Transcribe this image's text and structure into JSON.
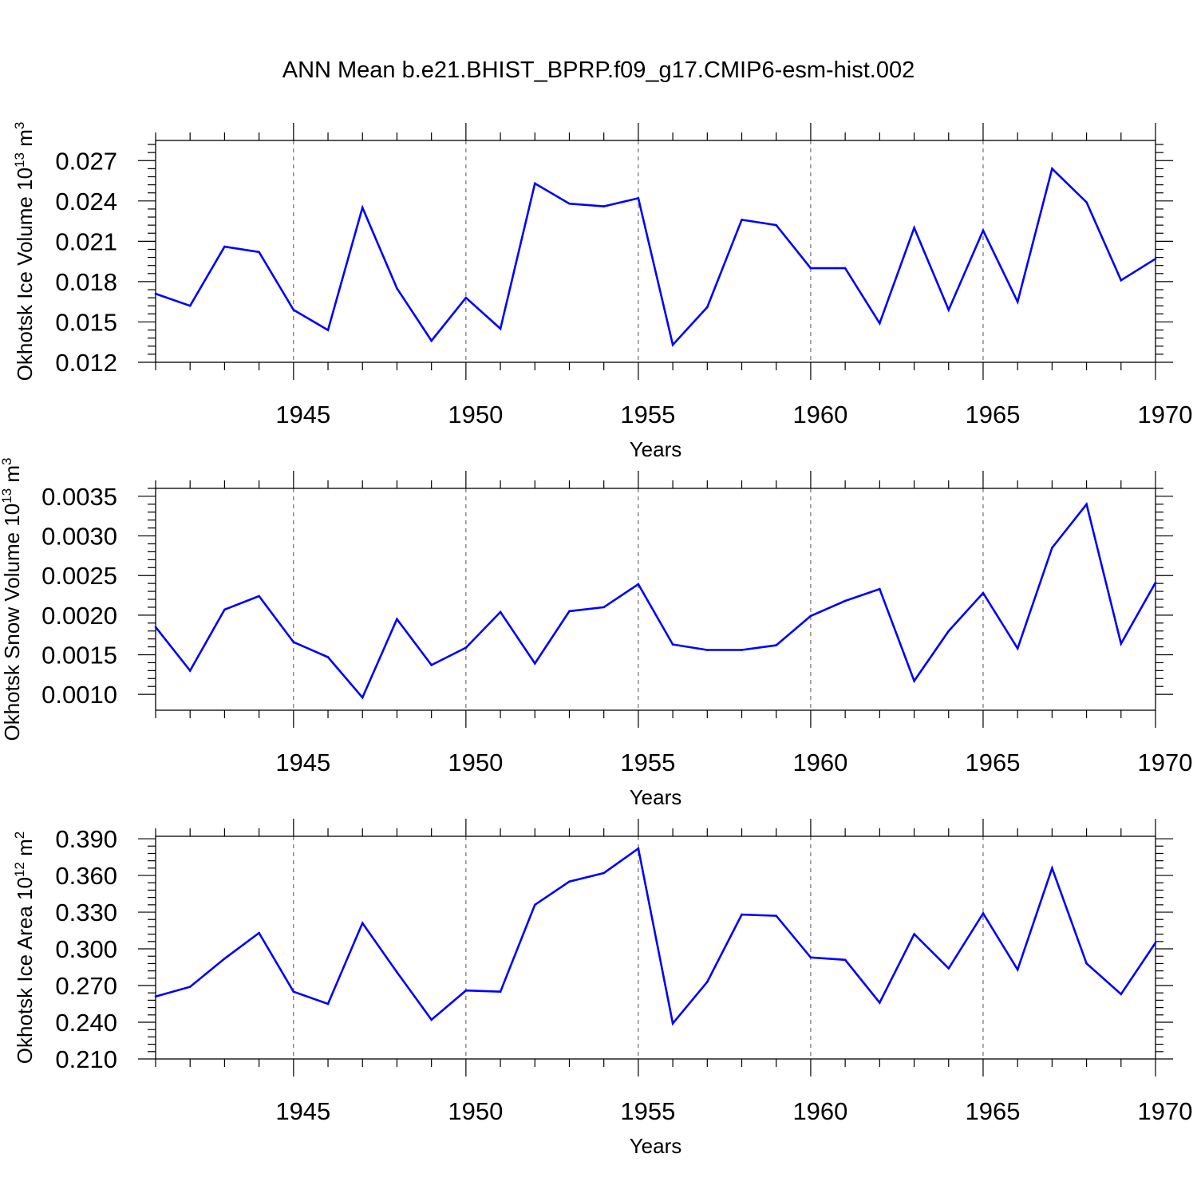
{
  "title": "ANN Mean b.e21.BHIST_BPRP.f09_g17.CMIP6-esm-hist.002",
  "colors": {
    "series": "#0000ff",
    "axis": "#000000",
    "grid": "#555555"
  },
  "chart_data": [
    {
      "type": "line",
      "xlabel": "Years",
      "ylabel": "Okhotsk Ice Volume 10",
      "ylabel_exp": "13",
      "ylabel_unit": " m",
      "ylabel_unit_exp": "3",
      "xlim": [
        1941,
        1970
      ],
      "ylim": [
        0.012,
        0.0285
      ],
      "xticks": [
        1945,
        1950,
        1955,
        1960,
        1965,
        1970
      ],
      "xtick_labels": [
        "1945",
        "1950",
        "1955",
        "1960",
        "1965",
        "1970"
      ],
      "yticks": [
        0.012,
        0.015,
        0.018,
        0.021,
        0.024,
        0.027
      ],
      "ytick_labels": [
        "0.012",
        "0.015",
        "0.018",
        "0.021",
        "0.024",
        "0.027"
      ],
      "grid": "vertical dashed at labeled years",
      "x": [
        1941,
        1942,
        1943,
        1944,
        1945,
        1946,
        1947,
        1948,
        1949,
        1950,
        1951,
        1952,
        1953,
        1954,
        1955,
        1956,
        1957,
        1958,
        1959,
        1960,
        1961,
        1962,
        1963,
        1964,
        1965,
        1966,
        1967,
        1968,
        1969,
        1970
      ],
      "values": [
        0.0171,
        0.0162,
        0.0206,
        0.0202,
        0.0159,
        0.0144,
        0.0235,
        0.0175,
        0.0136,
        0.0168,
        0.0145,
        0.0253,
        0.0238,
        0.0236,
        0.0242,
        0.0133,
        0.0161,
        0.0226,
        0.0222,
        0.019,
        0.019,
        0.0149,
        0.022,
        0.0159,
        0.0218,
        0.0165,
        0.0264,
        0.0239,
        0.0181,
        0.0197
      ]
    },
    {
      "type": "line",
      "xlabel": "Years",
      "ylabel": "Okhotsk Snow Volume 10",
      "ylabel_exp": "13",
      "ylabel_unit": " m",
      "ylabel_unit_exp": "3",
      "xlim": [
        1941,
        1970
      ],
      "ylim": [
        0.0008,
        0.0036
      ],
      "xticks": [
        1945,
        1950,
        1955,
        1960,
        1965,
        1970
      ],
      "xtick_labels": [
        "1945",
        "1950",
        "1955",
        "1960",
        "1965",
        "1970"
      ],
      "yticks": [
        0.001,
        0.0015,
        0.002,
        0.0025,
        0.003,
        0.0035
      ],
      "ytick_labels": [
        "0.0010",
        "0.0015",
        "0.0020",
        "0.0025",
        "0.0030",
        "0.0035"
      ],
      "grid": "vertical dashed at labeled years",
      "x": [
        1941,
        1942,
        1943,
        1944,
        1945,
        1946,
        1947,
        1948,
        1949,
        1950,
        1951,
        1952,
        1953,
        1954,
        1955,
        1956,
        1957,
        1958,
        1959,
        1960,
        1961,
        1962,
        1963,
        1964,
        1965,
        1966,
        1967,
        1968,
        1969,
        1970
      ],
      "values": [
        0.00185,
        0.0013,
        0.00207,
        0.00224,
        0.00166,
        0.00147,
        0.00096,
        0.00195,
        0.00137,
        0.00159,
        0.00204,
        0.00139,
        0.00205,
        0.0021,
        0.00239,
        0.00163,
        0.00156,
        0.00156,
        0.00162,
        0.00199,
        0.00218,
        0.00233,
        0.00117,
        0.0018,
        0.00228,
        0.00158,
        0.00285,
        0.0034,
        0.00164,
        0.00241
      ]
    },
    {
      "type": "line",
      "xlabel": "Years",
      "ylabel": "Okhotsk Ice Area 10",
      "ylabel_exp": "12",
      "ylabel_unit": " m",
      "ylabel_unit_exp": "2",
      "xlim": [
        1941,
        1970
      ],
      "ylim": [
        0.21,
        0.392
      ],
      "xticks": [
        1945,
        1950,
        1955,
        1960,
        1965,
        1970
      ],
      "xtick_labels": [
        "1945",
        "1950",
        "1955",
        "1960",
        "1965",
        "1970"
      ],
      "yticks": [
        0.21,
        0.24,
        0.27,
        0.3,
        0.33,
        0.36,
        0.39
      ],
      "ytick_labels": [
        "0.210",
        "0.240",
        "0.270",
        "0.300",
        "0.330",
        "0.360",
        "0.390"
      ],
      "grid": "vertical dashed at labeled years",
      "x": [
        1941,
        1942,
        1943,
        1944,
        1945,
        1946,
        1947,
        1948,
        1949,
        1950,
        1951,
        1952,
        1953,
        1954,
        1955,
        1956,
        1957,
        1958,
        1959,
        1960,
        1961,
        1962,
        1963,
        1964,
        1965,
        1966,
        1967,
        1968,
        1969,
        1970
      ],
      "values": [
        0.261,
        0.269,
        0.292,
        0.313,
        0.265,
        0.255,
        0.321,
        0.281,
        0.242,
        0.266,
        0.265,
        0.336,
        0.355,
        0.362,
        0.382,
        0.239,
        0.273,
        0.328,
        0.327,
        0.293,
        0.291,
        0.256,
        0.312,
        0.284,
        0.329,
        0.283,
        0.366,
        0.288,
        0.263,
        0.305
      ]
    }
  ]
}
